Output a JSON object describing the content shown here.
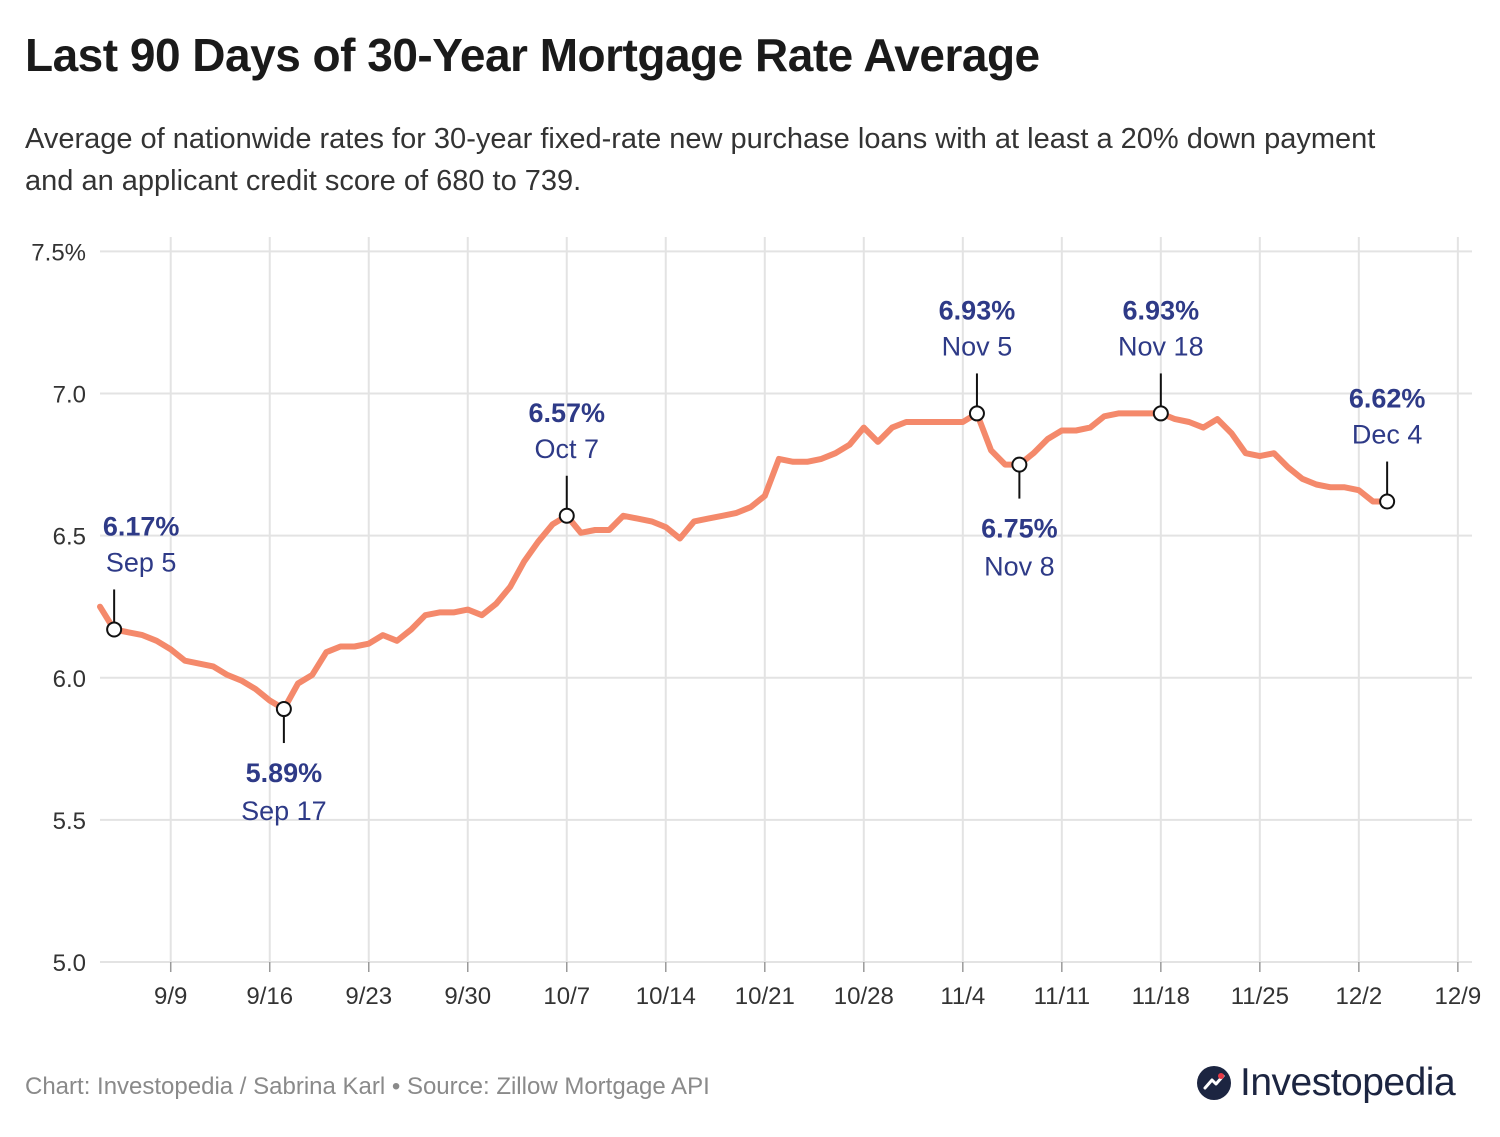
{
  "title": "Last 90 Days of 30-Year Mortgage Rate Average",
  "subtitle": "Average of nationwide rates for 30-year fixed-rate new purchase loans with at least a 20% down payment and an applicant credit score of 680 to 739.",
  "footer": "Chart: Investopedia / Sabrina Karl • Source: Zillow Mortgage API",
  "logo": {
    "text": "Investopedia",
    "icon": "investopedia-logo-icon"
  },
  "colors": {
    "line": "#f4896b",
    "annotation": "#2e3a87",
    "grid": "#e3e3e3",
    "axis_text": "#333333"
  },
  "chart_data": {
    "type": "line",
    "title": "Last 90 Days of 30-Year Mortgage Rate Average",
    "xlabel": "",
    "ylabel": "",
    "ylim": [
      5.0,
      7.6
    ],
    "y_ticks": [
      {
        "value": 5.0,
        "label": "5.0"
      },
      {
        "value": 5.5,
        "label": "5.5"
      },
      {
        "value": 6.0,
        "label": "6.0"
      },
      {
        "value": 6.5,
        "label": "6.5"
      },
      {
        "value": 7.0,
        "label": "7.0"
      },
      {
        "value": 7.5,
        "label": "7.5%"
      }
    ],
    "x_start": "2024-09-04",
    "x_end": "2024-12-10",
    "x_ticks": [
      {
        "date": "2024-09-09",
        "label": "9/9"
      },
      {
        "date": "2024-09-16",
        "label": "9/16"
      },
      {
        "date": "2024-09-23",
        "label": "9/23"
      },
      {
        "date": "2024-09-30",
        "label": "9/30"
      },
      {
        "date": "2024-10-07",
        "label": "10/7"
      },
      {
        "date": "2024-10-14",
        "label": "10/14"
      },
      {
        "date": "2024-10-21",
        "label": "10/21"
      },
      {
        "date": "2024-10-28",
        "label": "10/28"
      },
      {
        "date": "2024-11-04",
        "label": "11/4"
      },
      {
        "date": "2024-11-11",
        "label": "11/11"
      },
      {
        "date": "2024-11-18",
        "label": "11/18"
      },
      {
        "date": "2024-11-25",
        "label": "11/25"
      },
      {
        "date": "2024-12-02",
        "label": "12/2"
      },
      {
        "date": "2024-12-09",
        "label": "12/9"
      }
    ],
    "grid": true,
    "series": [
      {
        "points": [
          {
            "x": "2024-09-04",
            "y": 6.25
          },
          {
            "x": "2024-09-05",
            "y": 6.17
          },
          {
            "x": "2024-09-06",
            "y": 6.16
          },
          {
            "x": "2024-09-07",
            "y": 6.15
          },
          {
            "x": "2024-09-08",
            "y": 6.13
          },
          {
            "x": "2024-09-09",
            "y": 6.1
          },
          {
            "x": "2024-09-10",
            "y": 6.06
          },
          {
            "x": "2024-09-11",
            "y": 6.05
          },
          {
            "x": "2024-09-12",
            "y": 6.04
          },
          {
            "x": "2024-09-13",
            "y": 6.01
          },
          {
            "x": "2024-09-14",
            "y": 5.99
          },
          {
            "x": "2024-09-15",
            "y": 5.96
          },
          {
            "x": "2024-09-16",
            "y": 5.92
          },
          {
            "x": "2024-09-17",
            "y": 5.89
          },
          {
            "x": "2024-09-18",
            "y": 5.98
          },
          {
            "x": "2024-09-19",
            "y": 6.01
          },
          {
            "x": "2024-09-20",
            "y": 6.09
          },
          {
            "x": "2024-09-21",
            "y": 6.11
          },
          {
            "x": "2024-09-22",
            "y": 6.11
          },
          {
            "x": "2024-09-23",
            "y": 6.12
          },
          {
            "x": "2024-09-24",
            "y": 6.15
          },
          {
            "x": "2024-09-25",
            "y": 6.13
          },
          {
            "x": "2024-09-26",
            "y": 6.17
          },
          {
            "x": "2024-09-27",
            "y": 6.22
          },
          {
            "x": "2024-09-28",
            "y": 6.23
          },
          {
            "x": "2024-09-29",
            "y": 6.23
          },
          {
            "x": "2024-09-30",
            "y": 6.24
          },
          {
            "x": "2024-10-01",
            "y": 6.22
          },
          {
            "x": "2024-10-02",
            "y": 6.26
          },
          {
            "x": "2024-10-03",
            "y": 6.32
          },
          {
            "x": "2024-10-04",
            "y": 6.41
          },
          {
            "x": "2024-10-05",
            "y": 6.48
          },
          {
            "x": "2024-10-06",
            "y": 6.54
          },
          {
            "x": "2024-10-07",
            "y": 6.57
          },
          {
            "x": "2024-10-08",
            "y": 6.51
          },
          {
            "x": "2024-10-09",
            "y": 6.52
          },
          {
            "x": "2024-10-10",
            "y": 6.52
          },
          {
            "x": "2024-10-11",
            "y": 6.57
          },
          {
            "x": "2024-10-12",
            "y": 6.56
          },
          {
            "x": "2024-10-13",
            "y": 6.55
          },
          {
            "x": "2024-10-14",
            "y": 6.53
          },
          {
            "x": "2024-10-15",
            "y": 6.49
          },
          {
            "x": "2024-10-16",
            "y": 6.55
          },
          {
            "x": "2024-10-17",
            "y": 6.56
          },
          {
            "x": "2024-10-18",
            "y": 6.57
          },
          {
            "x": "2024-10-19",
            "y": 6.58
          },
          {
            "x": "2024-10-20",
            "y": 6.6
          },
          {
            "x": "2024-10-21",
            "y": 6.64
          },
          {
            "x": "2024-10-22",
            "y": 6.77
          },
          {
            "x": "2024-10-23",
            "y": 6.76
          },
          {
            "x": "2024-10-24",
            "y": 6.76
          },
          {
            "x": "2024-10-25",
            "y": 6.77
          },
          {
            "x": "2024-10-26",
            "y": 6.79
          },
          {
            "x": "2024-10-27",
            "y": 6.82
          },
          {
            "x": "2024-10-28",
            "y": 6.88
          },
          {
            "x": "2024-10-29",
            "y": 6.83
          },
          {
            "x": "2024-10-30",
            "y": 6.88
          },
          {
            "x": "2024-10-31",
            "y": 6.9
          },
          {
            "x": "2024-11-01",
            "y": 6.9
          },
          {
            "x": "2024-11-02",
            "y": 6.9
          },
          {
            "x": "2024-11-03",
            "y": 6.9
          },
          {
            "x": "2024-11-04",
            "y": 6.9
          },
          {
            "x": "2024-11-05",
            "y": 6.93
          },
          {
            "x": "2024-11-06",
            "y": 6.8
          },
          {
            "x": "2024-11-07",
            "y": 6.75
          },
          {
            "x": "2024-11-08",
            "y": 6.75
          },
          {
            "x": "2024-11-09",
            "y": 6.79
          },
          {
            "x": "2024-11-10",
            "y": 6.84
          },
          {
            "x": "2024-11-11",
            "y": 6.87
          },
          {
            "x": "2024-11-12",
            "y": 6.87
          },
          {
            "x": "2024-11-13",
            "y": 6.88
          },
          {
            "x": "2024-11-14",
            "y": 6.92
          },
          {
            "x": "2024-11-15",
            "y": 6.93
          },
          {
            "x": "2024-11-16",
            "y": 6.93
          },
          {
            "x": "2024-11-17",
            "y": 6.93
          },
          {
            "x": "2024-11-18",
            "y": 6.93
          },
          {
            "x": "2024-11-19",
            "y": 6.91
          },
          {
            "x": "2024-11-20",
            "y": 6.9
          },
          {
            "x": "2024-11-21",
            "y": 6.88
          },
          {
            "x": "2024-11-22",
            "y": 6.91
          },
          {
            "x": "2024-11-23",
            "y": 6.86
          },
          {
            "x": "2024-11-24",
            "y": 6.79
          },
          {
            "x": "2024-11-25",
            "y": 6.78
          },
          {
            "x": "2024-11-26",
            "y": 6.79
          },
          {
            "x": "2024-11-27",
            "y": 6.74
          },
          {
            "x": "2024-11-28",
            "y": 6.7
          },
          {
            "x": "2024-11-29",
            "y": 6.68
          },
          {
            "x": "2024-11-30",
            "y": 6.67
          },
          {
            "x": "2024-12-01",
            "y": 6.67
          },
          {
            "x": "2024-12-02",
            "y": 6.66
          },
          {
            "x": "2024-12-03",
            "y": 6.62
          },
          {
            "x": "2024-12-04",
            "y": 6.62
          }
        ]
      }
    ],
    "annotations": [
      {
        "date": "2024-09-05",
        "value": 6.17,
        "value_label": "6.17%",
        "date_label": "Sep 5",
        "position": "above"
      },
      {
        "date": "2024-09-17",
        "value": 5.89,
        "value_label": "5.89%",
        "date_label": "Sep 17",
        "position": "below"
      },
      {
        "date": "2024-10-07",
        "value": 6.57,
        "value_label": "6.57%",
        "date_label": "Oct 7",
        "position": "above"
      },
      {
        "date": "2024-11-05",
        "value": 6.93,
        "value_label": "6.93%",
        "date_label": "Nov 5",
        "position": "above"
      },
      {
        "date": "2024-11-08",
        "value": 6.75,
        "value_label": "6.75%",
        "date_label": "Nov 8",
        "position": "below"
      },
      {
        "date": "2024-11-18",
        "value": 6.93,
        "value_label": "6.93%",
        "date_label": "Nov 18",
        "position": "above"
      },
      {
        "date": "2024-12-04",
        "value": 6.62,
        "value_label": "6.62%",
        "date_label": "Dec 4",
        "position": "above"
      }
    ]
  }
}
